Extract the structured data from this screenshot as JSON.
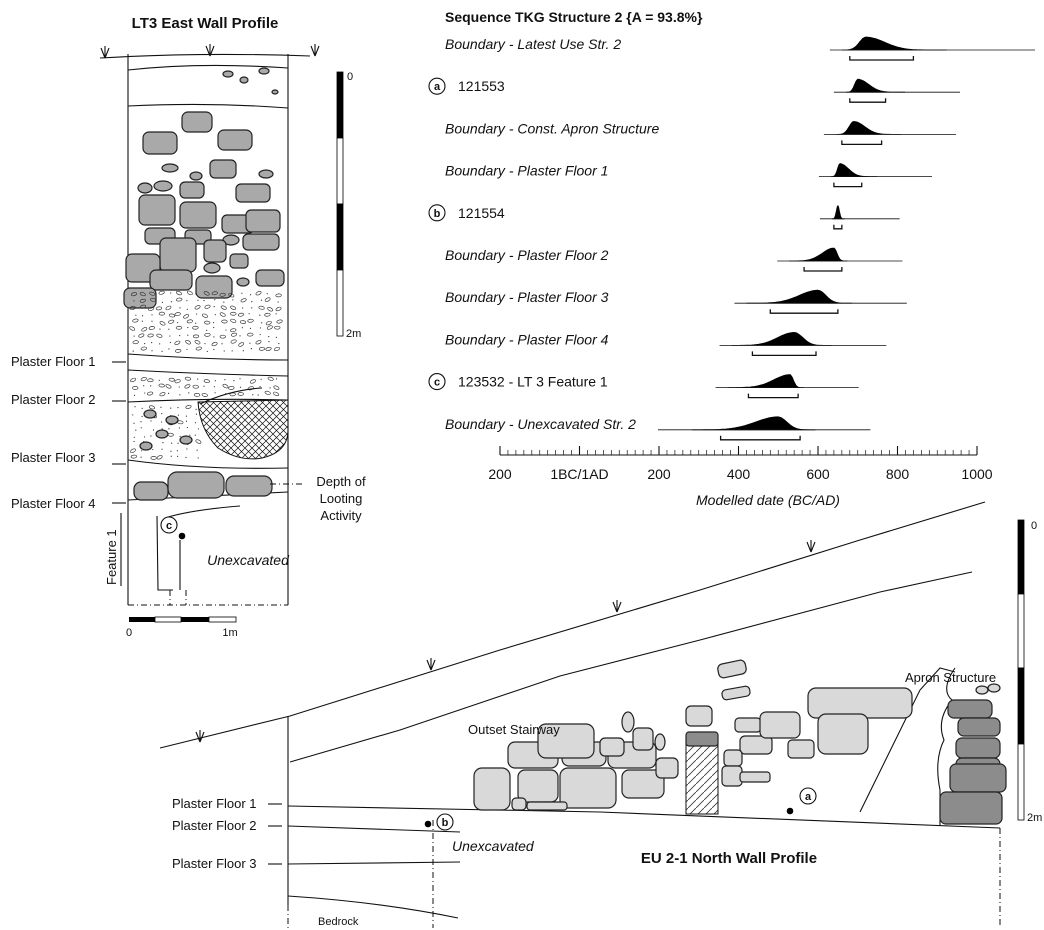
{
  "lt3": {
    "title": "LT3 East Wall Profile",
    "floor_labels": [
      "Plaster Floor 1",
      "Plaster Floor 2",
      "Plaster Floor 3",
      "Plaster Floor 4"
    ],
    "feature_label": "Feature 1",
    "unexcavated": "Unexcavated",
    "looting": [
      "Depth of",
      "Looting",
      "Activity"
    ],
    "sample_marker": "c",
    "scale_h": [
      "0",
      "1m"
    ],
    "scale_v": [
      "0",
      "2m"
    ]
  },
  "sequence": {
    "title": "Sequence TKG Structure 2 {A = 93.8%}",
    "xlabel": "Modelled date (BC/AD)",
    "ticks": [
      "200",
      "1BC/1AD",
      "200",
      "400",
      "600",
      "800",
      "1000"
    ],
    "rows": [
      {
        "label": "Boundary - Latest Use Str. 2",
        "italic": true,
        "marker": "",
        "peak": 720,
        "range": [
          680,
          840
        ]
      },
      {
        "label": "121553",
        "italic": false,
        "marker": "a",
        "peak": 700,
        "range": [
          680,
          770
        ]
      },
      {
        "label": "Boundary - Const. Apron Structure",
        "italic": true,
        "marker": "",
        "peak": 690,
        "range": [
          660,
          760
        ]
      },
      {
        "label": "Boundary - Plaster Floor 1",
        "italic": true,
        "marker": "",
        "peak": 655,
        "range": [
          640,
          710
        ]
      },
      {
        "label": "121554",
        "italic": false,
        "marker": "b",
        "peak": 650,
        "range": [
          640,
          660
        ]
      },
      {
        "label": "Boundary - Plaster Floor 2",
        "italic": true,
        "marker": "",
        "peak": 640,
        "range": [
          565,
          660
        ]
      },
      {
        "label": "Boundary - Plaster Floor 3",
        "italic": true,
        "marker": "",
        "peak": 600,
        "range": [
          480,
          650
        ]
      },
      {
        "label": "Boundary - Plaster Floor 4",
        "italic": true,
        "marker": "",
        "peak": 540,
        "range": [
          435,
          595
        ]
      },
      {
        "label": "123532 - LT 3 Feature 1",
        "italic": false,
        "marker": "c",
        "peak": 530,
        "range": [
          425,
          550
        ]
      },
      {
        "label": "Boundary - Unexcavated Str. 2",
        "italic": true,
        "marker": "",
        "peak": 500,
        "range": [
          355,
          555
        ]
      }
    ]
  },
  "eu21": {
    "title": "EU 2-1 North Wall Profile",
    "floor_labels": [
      "Plaster Floor 1",
      "Plaster Floor 2",
      "Plaster Floor 3"
    ],
    "bedrock": "Bedrock",
    "unexcavated": "Unexcavated",
    "outset": "Outset Stairway",
    "apron": "Apron Structure",
    "marker_a": "a",
    "marker_b": "b",
    "scale_v": [
      "0",
      "2m"
    ]
  }
}
